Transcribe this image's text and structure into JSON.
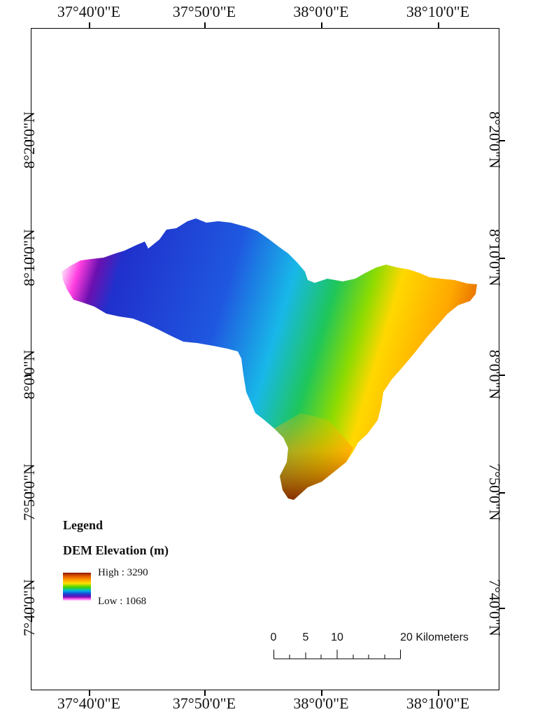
{
  "map": {
    "top_labels": [
      "37°40'0\"E",
      "37°50'0\"E",
      "38°0'0\"E",
      "38°10'0\"E"
    ],
    "bottom_labels": [
      "37°40'0\"E",
      "37°50'0\"E",
      "38°0'0\"E",
      "38°10'0\"E"
    ],
    "left_labels": [
      "8°20'0\"N",
      "8°10'0\"N",
      "8°0'0\"N",
      "7°50'0\"N",
      "7°40'0\"N"
    ],
    "right_labels": [
      "8°20'0\"N",
      "8°10'0\"N",
      "8°0'0\"N",
      "7°50'0\"N",
      "7°40'0\"N"
    ]
  },
  "legend": {
    "title": "Legend",
    "subtitle": "DEM Elevation (m)",
    "high_label": "High : 3290",
    "low_label": "Low : 1068"
  },
  "scale": {
    "labels": [
      "0",
      "5",
      "10",
      "20 Kilometers"
    ]
  },
  "colors": {
    "high": "#8b1a00",
    "orange": "#f08a00",
    "yellow": "#ffd200",
    "green": "#22c400",
    "cyan": "#18b8e8",
    "blue": "#1f3fd8",
    "purple": "#7a10b8",
    "low": "#ffe8ff"
  }
}
